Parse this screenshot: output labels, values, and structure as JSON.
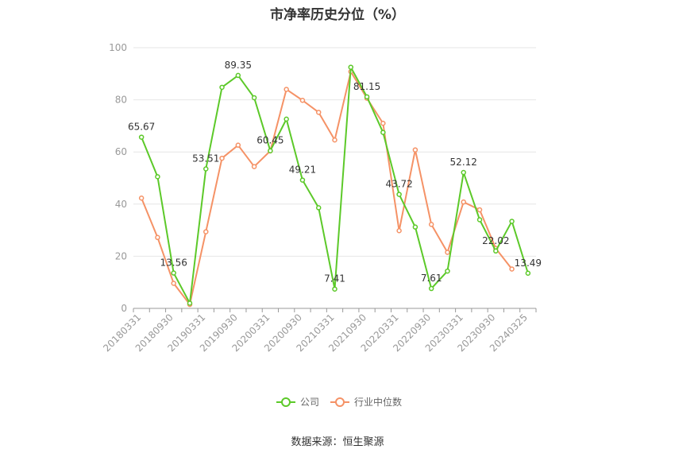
{
  "chart_data": {
    "type": "line",
    "title": "市净率历史分位（%）",
    "source": "数据来源：恒生聚源",
    "ylim": [
      0,
      100
    ],
    "y_ticks": [
      "0",
      "20",
      "40",
      "60",
      "80",
      "100"
    ],
    "x": [
      "20180331",
      "20180630",
      "20180930",
      "20181231",
      "20190331",
      "20190630",
      "20190930",
      "20191231",
      "20200331",
      "20200630",
      "20200930",
      "20201231",
      "20210331",
      "20210630",
      "20210930",
      "20211231",
      "20220331",
      "20220630",
      "20220930",
      "20221231",
      "20230331",
      "20230630",
      "20230930",
      "20231231",
      "20240325"
    ],
    "x_tick_labels": [
      "20180331",
      "20180930",
      "20190331",
      "20190930",
      "20200331",
      "20200930",
      "20210331",
      "20210930",
      "20220331",
      "20220930",
      "20230331",
      "20230930",
      "20240325"
    ],
    "grid": true,
    "legend_position": "bottom",
    "series": [
      {
        "name": "公司",
        "color": "#5cc929",
        "values": [
          65.67,
          50.5,
          13.56,
          2.0,
          53.51,
          84.8,
          89.35,
          80.8,
          60.45,
          72.6,
          49.21,
          38.6,
          7.41,
          92.5,
          81.15,
          67.5,
          43.72,
          31.2,
          7.61,
          14.3,
          52.12,
          34.0,
          22.02,
          33.4,
          13.49
        ]
      },
      {
        "name": "行业中位数",
        "color": "#f59266",
        "values": [
          42.3,
          27.2,
          9.6,
          1.5,
          29.4,
          57.6,
          62.6,
          54.4,
          60.4,
          84.0,
          79.8,
          75.2,
          64.6,
          90.8,
          80.6,
          71.0,
          29.8,
          60.8,
          32.2,
          21.5,
          40.8,
          37.8,
          23.0,
          15.1,
          null
        ]
      }
    ],
    "data_labels": [
      {
        "index": 0,
        "text": "65.67"
      },
      {
        "index": 2,
        "text": "13.56"
      },
      {
        "index": 4,
        "text": "53.51"
      },
      {
        "index": 6,
        "text": "89.35"
      },
      {
        "index": 8,
        "text": "60.45"
      },
      {
        "index": 10,
        "text": "49.21"
      },
      {
        "index": 12,
        "text": "7.41"
      },
      {
        "index": 14,
        "text": "81.15"
      },
      {
        "index": 16,
        "text": "43.72"
      },
      {
        "index": 18,
        "text": "7.61"
      },
      {
        "index": 20,
        "text": "52.12"
      },
      {
        "index": 22,
        "text": "22.02"
      },
      {
        "index": 24,
        "text": "13.49"
      }
    ]
  }
}
